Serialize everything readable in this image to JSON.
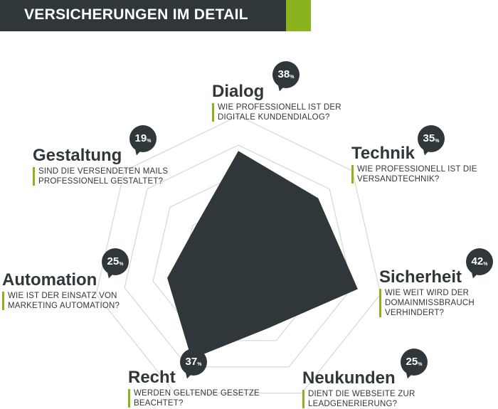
{
  "header": {
    "title": "VERSICHERUNGEN IM DETAIL",
    "accent_color": "#8bb21f",
    "bg_color": "#30373a"
  },
  "chart_data": {
    "type": "radar",
    "range": [
      0,
      50
    ],
    "grid_rings": 5,
    "fill_color": "#30373a",
    "axes": [
      {
        "key": "dialog",
        "name": "Dialog",
        "value": 38,
        "question": [
          "WIE PROFESSIONELL IST DER",
          "DIGITALE KUNDENDIALOG?"
        ]
      },
      {
        "key": "technik",
        "name": "Technik",
        "value": 35,
        "question": [
          "WIE PROFESSIONELL IST DIE",
          "VERSANDTECHNIK?"
        ]
      },
      {
        "key": "sicherheit",
        "name": "Sicherheit",
        "value": 42,
        "question": [
          "WIE WEIT WIRD DER",
          "DOMAINMISSBRAUCH",
          "VERHINDERT?"
        ]
      },
      {
        "key": "neukunden",
        "name": "Neukunden",
        "value": 25,
        "question": [
          "DIENT DIE WEBSEITE ZUR",
          "LEADGENERIERUNG?"
        ]
      },
      {
        "key": "recht",
        "name": "Recht",
        "value": 37,
        "question": [
          "WERDEN GELTENDE GESETZE",
          "BEACHTET?"
        ]
      },
      {
        "key": "automation",
        "name": "Automation",
        "value": 25,
        "question": [
          "WIE IST DER EINSATZ VON",
          "MARKETING AUTOMATION?"
        ]
      },
      {
        "key": "gestaltung",
        "name": "Gestaltung",
        "value": 19,
        "question": [
          "SIND DIE VERSENDETEN MAILS",
          "PROFESSIONELL GESTALTET?"
        ]
      }
    ],
    "unit": "%"
  }
}
